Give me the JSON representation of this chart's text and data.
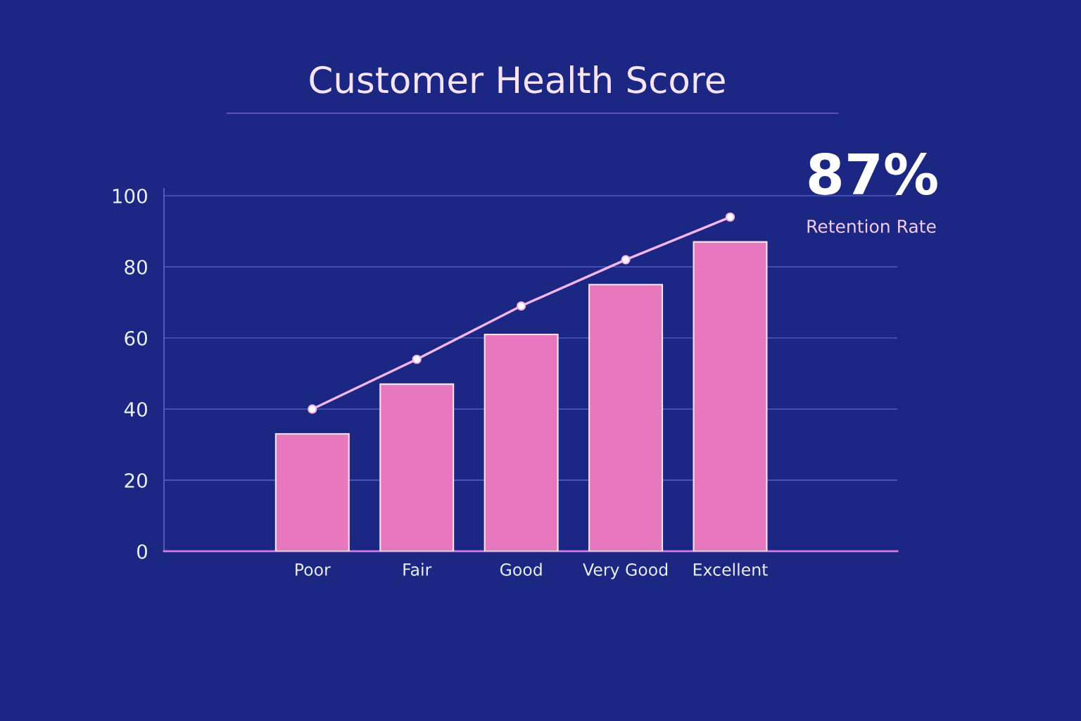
{
  "chart_data": {
    "type": "bar",
    "title": "Customer Health Score",
    "categories": [
      "Poor",
      "Fair",
      "Good",
      "Very Good",
      "Excellent"
    ],
    "series": [
      {
        "color": "#e878be",
        "values": [
          33,
          47,
          61,
          75,
          87
        ]
      },
      {
        "type": "line",
        "color": "#f3b6ee",
        "values": [
          40,
          54,
          69,
          82,
          94
        ]
      }
    ],
    "marker": "circle",
    "ylim": [
      0,
      102
    ],
    "yticks": [
      0,
      20,
      40,
      60,
      80,
      100
    ],
    "grid": "y",
    "annotations": [
      "87%",
      "Retention Rate"
    ]
  }
}
